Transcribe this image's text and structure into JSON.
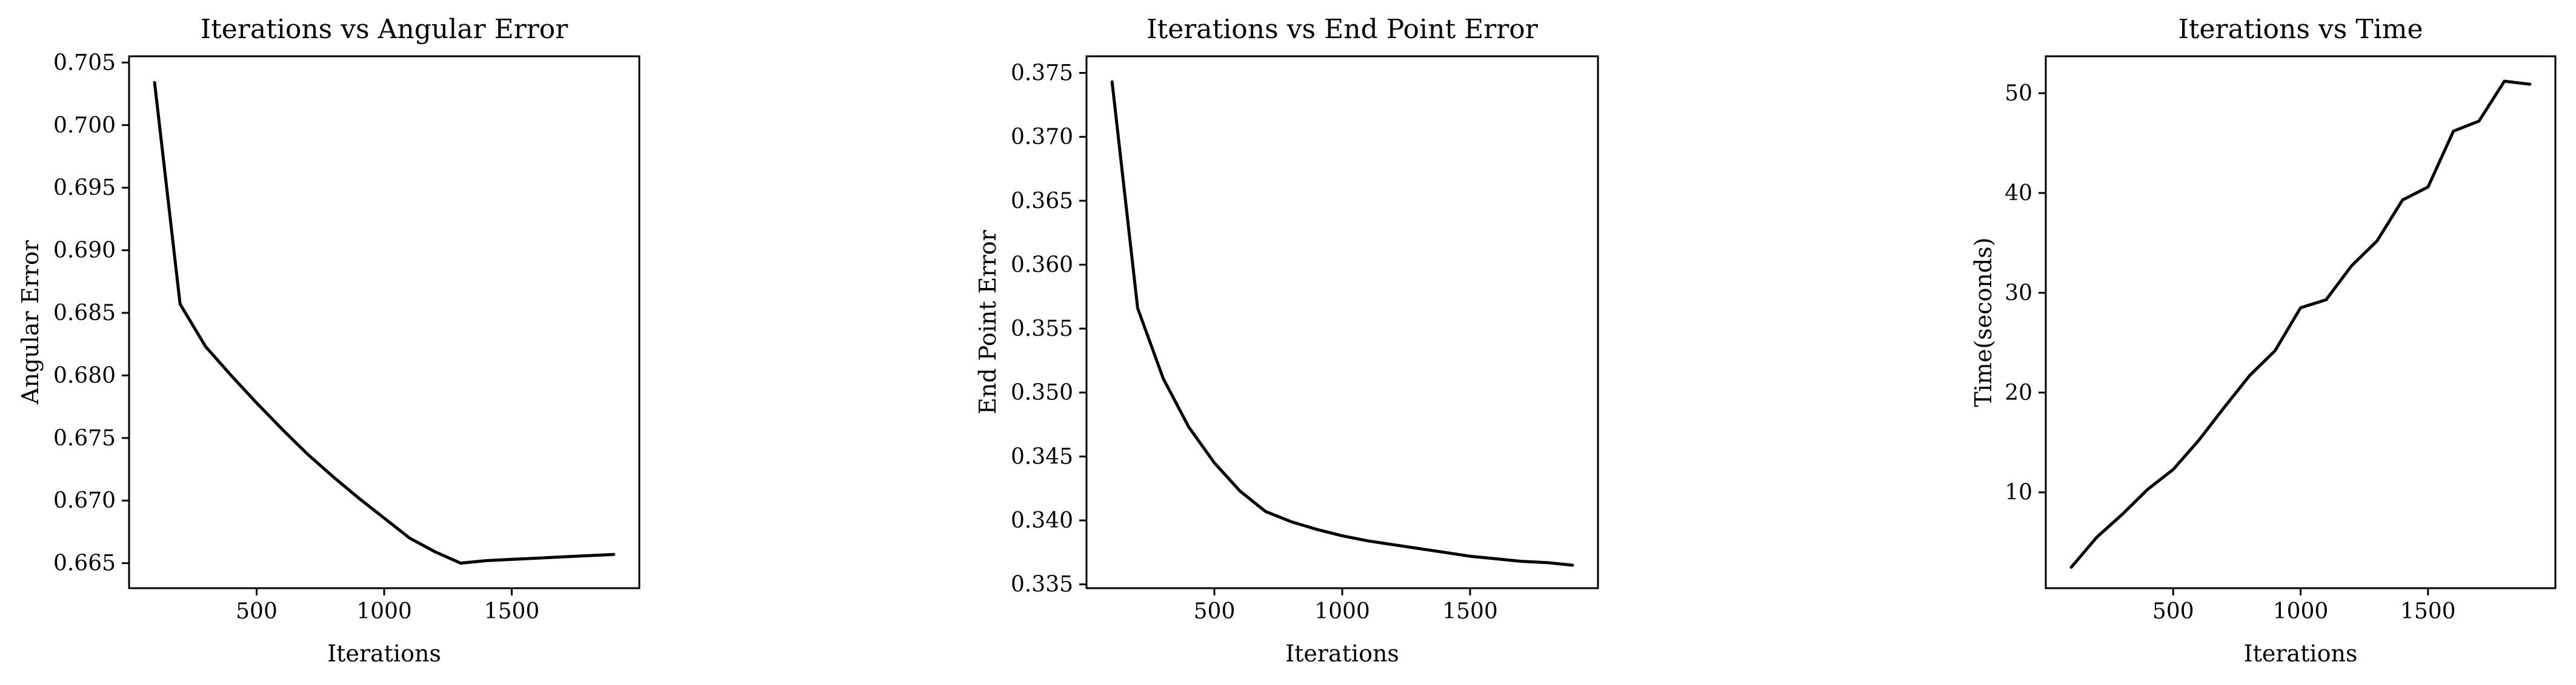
{
  "chart_data": [
    {
      "type": "line",
      "title": "Iterations vs Angular Error",
      "xlabel": "Iterations",
      "ylabel": "Angular Error",
      "xlim": [
        0,
        2000
      ],
      "ylim": [
        0.663,
        0.7055
      ],
      "xticks": [
        500,
        1000,
        1500
      ],
      "yticks": [
        0.665,
        0.67,
        0.675,
        0.68,
        0.685,
        0.69,
        0.695,
        0.7,
        0.705
      ],
      "ytick_labels": [
        "0.665",
        "0.670",
        "0.675",
        "0.680",
        "0.685",
        "0.690",
        "0.695",
        "0.700",
        "0.705"
      ],
      "series": [
        {
          "color": "#000000",
          "x": [
            100,
            200,
            300,
            400,
            500,
            600,
            700,
            800,
            900,
            1000,
            1100,
            1200,
            1300,
            1400,
            1500,
            1600,
            1700,
            1800,
            1900
          ],
          "y": [
            0.7034,
            0.6857,
            0.6823,
            0.68,
            0.6778,
            0.6757,
            0.6737,
            0.6719,
            0.6702,
            0.6686,
            0.667,
            0.6659,
            0.665,
            0.6652,
            0.6653,
            0.6654,
            0.6655,
            0.6656,
            0.6657
          ]
        }
      ]
    },
    {
      "type": "line",
      "title": "Iterations vs End Point Error",
      "xlabel": "Iterations",
      "ylabel": "End Point Error",
      "xlim": [
        0,
        2000
      ],
      "ylim": [
        0.3347,
        0.3763
      ],
      "xticks": [
        500,
        1000,
        1500
      ],
      "yticks": [
        0.335,
        0.34,
        0.345,
        0.35,
        0.355,
        0.36,
        0.365,
        0.37,
        0.375
      ],
      "ytick_labels": [
        "0.335",
        "0.340",
        "0.345",
        "0.350",
        "0.355",
        "0.360",
        "0.365",
        "0.370",
        "0.375"
      ],
      "series": [
        {
          "color": "#000000",
          "x": [
            100,
            200,
            300,
            400,
            500,
            600,
            700,
            800,
            900,
            1000,
            1100,
            1200,
            1300,
            1400,
            1500,
            1600,
            1700,
            1800,
            1900
          ],
          "y": [
            0.3743,
            0.3566,
            0.3511,
            0.3473,
            0.3445,
            0.3423,
            0.3407,
            0.3399,
            0.3393,
            0.3388,
            0.3384,
            0.3381,
            0.3378,
            0.3375,
            0.3372,
            0.337,
            0.3368,
            0.3367,
            0.3365
          ]
        }
      ]
    },
    {
      "type": "line",
      "title": "Iterations vs Time",
      "xlabel": "Iterations",
      "ylabel": "Time(seconds)",
      "xlim": [
        0,
        2000
      ],
      "ylim": [
        0.4,
        53.7
      ],
      "xticks": [
        500,
        1000,
        1500
      ],
      "yticks": [
        10,
        20,
        30,
        40,
        50
      ],
      "ytick_labels": [
        "10",
        "20",
        "30",
        "40",
        "50"
      ],
      "series": [
        {
          "color": "#000000",
          "x": [
            100,
            200,
            300,
            400,
            500,
            600,
            700,
            800,
            900,
            1000,
            1100,
            1200,
            1300,
            1400,
            1500,
            1600,
            1700,
            1800,
            1900
          ],
          "y": [
            2.5,
            5.5,
            7.8,
            10.3,
            12.3,
            15.2,
            18.5,
            21.7,
            24.2,
            28.5,
            29.3,
            32.7,
            35.2,
            39.3,
            40.6,
            46.2,
            47.2,
            51.2,
            50.9
          ]
        }
      ]
    }
  ]
}
